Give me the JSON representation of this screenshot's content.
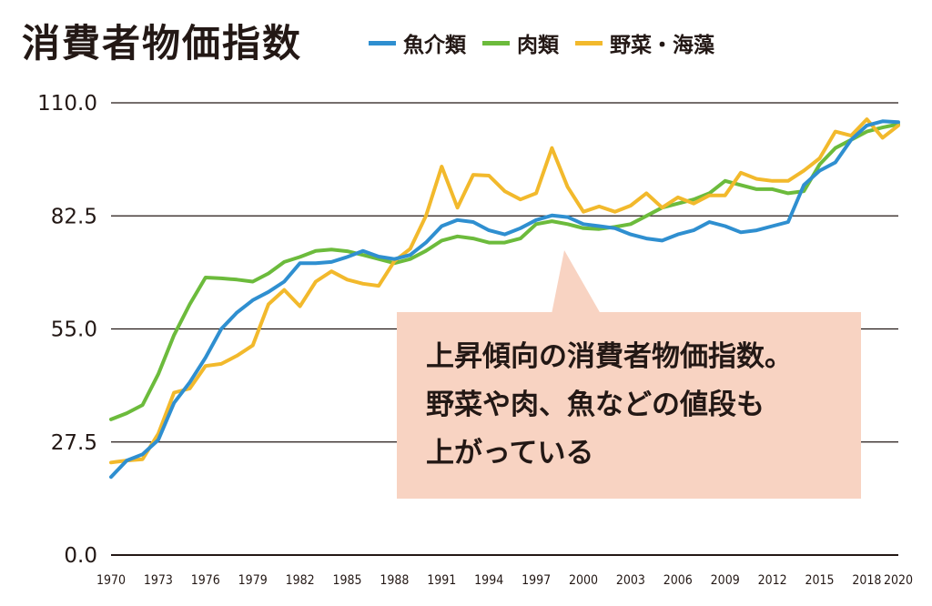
{
  "title": "消費者物価指数",
  "legend": [
    {
      "label": "魚介類",
      "color": "#2f8fd0"
    },
    {
      "label": "肉類",
      "color": "#6cbb3c"
    },
    {
      "label": "野菜・海藻",
      "color": "#f2b92c"
    }
  ],
  "callout": {
    "lines": [
      "上昇傾向の消費者物価指数。",
      "野菜や肉、魚などの値段も",
      "上がっている"
    ],
    "background": "#f8d3c2"
  },
  "chart_data": {
    "type": "line",
    "title": "消費者物価指数",
    "xlabel": "",
    "ylabel": "",
    "ylim": [
      0,
      110
    ],
    "xlim": [
      1970,
      2020
    ],
    "yticks": [
      "0.0",
      "27.5",
      "55.0",
      "82.5",
      "110.0"
    ],
    "ytick_values": [
      0,
      27.5,
      55,
      82.5,
      110
    ],
    "xticks": [
      "1970",
      "1973",
      "1976",
      "1979",
      "1982",
      "1985",
      "1988",
      "1991",
      "1994",
      "1997",
      "2000",
      "2003",
      "2006",
      "2009",
      "2012",
      "2015",
      "2018",
      "2020"
    ],
    "grid": "horizontal",
    "legend_position": "top",
    "x": [
      1970,
      1971,
      1972,
      1973,
      1974,
      1975,
      1976,
      1977,
      1978,
      1979,
      1980,
      1981,
      1982,
      1983,
      1984,
      1985,
      1986,
      1987,
      1988,
      1989,
      1990,
      1991,
      1992,
      1993,
      1994,
      1995,
      1996,
      1997,
      1998,
      1999,
      2000,
      2001,
      2002,
      2003,
      2004,
      2005,
      2006,
      2007,
      2008,
      2009,
      2010,
      2011,
      2012,
      2013,
      2014,
      2015,
      2016,
      2017,
      2018,
      2019,
      2020
    ],
    "series": [
      {
        "name": "魚介類",
        "color": "#2f8fd0",
        "values": [
          19,
          23,
          24.5,
          28,
          37,
          42,
          48,
          55,
          59,
          62,
          64,
          66.5,
          71,
          71,
          71.3,
          72.5,
          74,
          72.6,
          72,
          73,
          76,
          80,
          81.5,
          81,
          79,
          78,
          79.5,
          81.5,
          82.6,
          82.2,
          80.5,
          80,
          79.5,
          78,
          77,
          76.5,
          78,
          79,
          81,
          80,
          78.5,
          79,
          80,
          81,
          90,
          93.5,
          95.5,
          101,
          104.5,
          105.5,
          105.3
        ]
      },
      {
        "name": "肉類",
        "color": "#6cbb3c",
        "values": [
          33,
          34.5,
          36.5,
          44,
          53.5,
          61,
          67.5,
          67.3,
          67,
          66.5,
          68.5,
          71.3,
          72.5,
          74,
          74.3,
          73.9,
          73,
          72,
          71,
          72,
          74,
          76.5,
          77.5,
          77,
          76,
          76,
          77,
          80.5,
          81.2,
          80.5,
          79.5,
          79.3,
          79.8,
          80.5,
          82.5,
          84.5,
          85.5,
          86.5,
          88,
          91,
          90,
          89,
          89,
          88,
          88.5,
          95,
          99,
          101,
          103,
          104,
          104.8
        ]
      },
      {
        "name": "野菜・海藻",
        "color": "#f2b92c",
        "values": [
          22.5,
          23,
          23.3,
          29.5,
          39.5,
          40.5,
          46,
          46.5,
          48.5,
          51,
          61,
          64.5,
          60.5,
          66.5,
          69,
          67,
          66,
          65.5,
          71.5,
          74.5,
          82.5,
          94.5,
          84.5,
          92.5,
          92.3,
          88.5,
          86.5,
          88,
          99,
          89.5,
          83.5,
          84.8,
          83.5,
          85,
          88,
          84.5,
          87,
          85.5,
          87.5,
          87.5,
          93,
          91.5,
          91,
          91,
          93.5,
          96.5,
          103,
          102,
          106,
          101.5,
          104.5
        ]
      }
    ]
  }
}
